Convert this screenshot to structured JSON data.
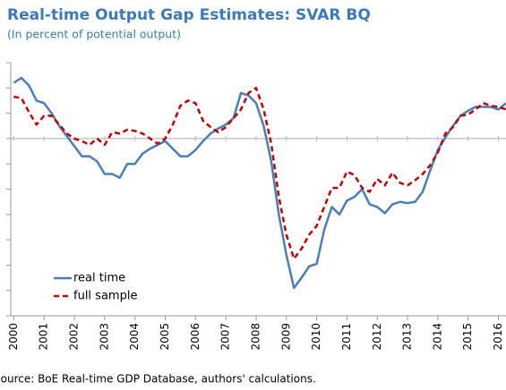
{
  "chart_data": {
    "type": "line",
    "title": "Real-time Output Gap Estimates: SVAR BQ",
    "subtitle": "(In percent of potential output)",
    "source": "Source: BoE Real-time GDP Database, authors' calculations.",
    "x": [
      2000,
      2000.25,
      2000.5,
      2000.75,
      2001,
      2001.25,
      2001.5,
      2001.75,
      2002,
      2002.25,
      2002.5,
      2002.75,
      2003,
      2003.25,
      2003.5,
      2003.75,
      2004,
      2004.25,
      2004.5,
      2004.75,
      2005,
      2005.25,
      2005.5,
      2005.75,
      2006,
      2006.25,
      2006.5,
      2006.75,
      2007,
      2007.25,
      2007.5,
      2007.75,
      2008,
      2008.25,
      2008.5,
      2008.75,
      2009,
      2009.25,
      2009.5,
      2009.75,
      2010,
      2010.25,
      2010.5,
      2010.75,
      2011,
      2011.25,
      2011.5,
      2011.75,
      2012,
      2012.25,
      2012.5,
      2012.75,
      2013,
      2013.25,
      2013.5,
      2013.75,
      2014,
      2014.25,
      2014.5,
      2014.75,
      2015,
      2015.25,
      2015.5,
      2015.75,
      2016,
      2016.25
    ],
    "series": [
      {
        "name": "real time",
        "color": "#4a7ebb",
        "dash": false,
        "values": [
          2.2,
          2.4,
          2.1,
          1.5,
          1.4,
          1.0,
          0.5,
          0.1,
          -0.3,
          -0.7,
          -0.7,
          -0.9,
          -1.4,
          -1.4,
          -1.55,
          -1.0,
          -1.0,
          -0.6,
          -0.4,
          -0.25,
          -0.1,
          -0.4,
          -0.7,
          -0.7,
          -0.45,
          -0.1,
          0.2,
          0.4,
          0.55,
          0.8,
          1.8,
          1.7,
          1.4,
          0.5,
          -0.9,
          -3.0,
          -4.6,
          -5.9,
          -5.5,
          -5.05,
          -4.95,
          -3.6,
          -2.7,
          -3.0,
          -2.45,
          -2.3,
          -2.0,
          -2.6,
          -2.7,
          -2.95,
          -2.6,
          -2.5,
          -2.55,
          -2.5,
          -2.1,
          -1.25,
          -0.45,
          0.05,
          0.5,
          0.9,
          1.1,
          1.25,
          1.25,
          1.25,
          1.15,
          1.4
        ]
      },
      {
        "name": "full sample",
        "color": "#c00000",
        "dash": true,
        "values": [
          1.65,
          1.6,
          1.05,
          0.55,
          0.9,
          0.9,
          0.55,
          0.2,
          0,
          -0.1,
          -0.25,
          0,
          -0.25,
          0.25,
          0.2,
          0.35,
          0.3,
          0.2,
          0,
          -0.2,
          0,
          0.55,
          1.3,
          1.5,
          1.4,
          0.7,
          0.45,
          0.25,
          0.45,
          0.8,
          1.15,
          1.8,
          2.0,
          1.15,
          -0.2,
          -2.3,
          -3.8,
          -4.75,
          -4.35,
          -3.8,
          -3.45,
          -2.7,
          -1.95,
          -1.95,
          -1.3,
          -1.45,
          -1.95,
          -2.1,
          -1.6,
          -1.85,
          -1.35,
          -1.75,
          -1.85,
          -1.65,
          -1.4,
          -1.05,
          -0.55,
          0.2,
          0.45,
          0.9,
          0.95,
          1.15,
          1.4,
          1.3,
          1.25,
          1.15
        ]
      }
    ],
    "xlim": [
      1999.9,
      2016.25
    ],
    "xticks": [
      2000,
      2001,
      2002,
      2003,
      2004,
      2005,
      2006,
      2007,
      2008,
      2009,
      2010,
      2011,
      2012,
      2013,
      2014,
      2015,
      2016
    ],
    "ylim": [
      -7,
      3
    ],
    "yticks": [
      -7,
      -6,
      -5,
      -4,
      -3,
      -2,
      -1,
      0,
      1,
      2,
      3
    ],
    "legend": "lower left"
  }
}
